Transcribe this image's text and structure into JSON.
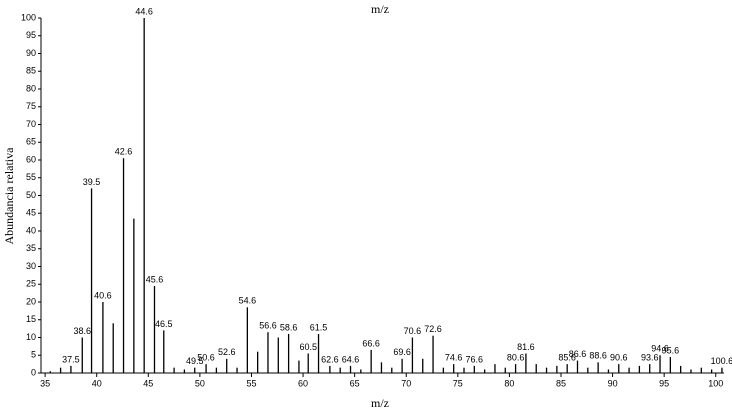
{
  "chart_data": {
    "type": "stem",
    "title": "m/z",
    "x_label": "m/z",
    "y_label": "Abundancia relativa",
    "color": "#000000",
    "x": [
      35.5,
      36.5,
      37.5,
      38.6,
      39.5,
      40.6,
      41.6,
      42.6,
      43.6,
      44.6,
      45.6,
      46.5,
      47.5,
      48.5,
      49.5,
      50.6,
      51.6,
      52.6,
      53.6,
      54.6,
      55.6,
      56.6,
      57.6,
      58.6,
      59.6,
      60.5,
      61.5,
      62.6,
      63.6,
      64.6,
      65.6,
      66.6,
      67.6,
      68.6,
      69.6,
      70.6,
      71.6,
      72.6,
      73.6,
      74.6,
      75.6,
      76.6,
      77.6,
      78.6,
      79.6,
      80.6,
      81.6,
      82.6,
      83.6,
      84.6,
      85.6,
      86.6,
      87.6,
      88.6,
      89.6,
      90.6,
      91.6,
      92.6,
      93.6,
      94.6,
      95.6,
      96.6,
      97.6,
      98.6,
      99.6,
      100.6
    ],
    "values": [
      0.5,
      1.5,
      2,
      10,
      52,
      20,
      14,
      60.5,
      43.5,
      100,
      24.5,
      12,
      1.5,
      1,
      1.5,
      2.5,
      1.5,
      4,
      1.5,
      18.5,
      6,
      11.5,
      10,
      11,
      3.5,
      5.5,
      11,
      2,
      1.5,
      2,
      1,
      6.5,
      3,
      1.5,
      4,
      10,
      4,
      10.5,
      1.5,
      2.5,
      1.5,
      2,
      1,
      2.5,
      1.5,
      2.5,
      5.5,
      2.5,
      1.5,
      2,
      2.5,
      3.5,
      1.5,
      3,
      1,
      2.5,
      1.5,
      2,
      2.5,
      5,
      4.5,
      2,
      1,
      1.5,
      1,
      1.5
    ],
    "peak_labels": [
      null,
      null,
      "37.5",
      "38.6",
      "39.5",
      "40.6",
      null,
      "42.6",
      null,
      "44.6",
      "45.6",
      "46.5",
      null,
      null,
      "49.5",
      "50.6",
      null,
      "52.6",
      null,
      "54.6",
      null,
      "56.6",
      null,
      "58.6",
      null,
      "60.5",
      "61.5",
      "62.6",
      null,
      "64.6",
      null,
      "66.6",
      null,
      null,
      "69.6",
      "70.6",
      null,
      "72.6",
      null,
      "74.6",
      null,
      "76.6",
      null,
      null,
      null,
      "80.6",
      "81.6",
      null,
      null,
      null,
      "85.6",
      "86.6",
      null,
      "88.6",
      null,
      "90.6",
      null,
      null,
      "93.6",
      "94.6",
      "95.6",
      null,
      null,
      null,
      null,
      "100.6"
    ],
    "xlim": [
      34.6,
      100.8
    ],
    "ylim": [
      0,
      100
    ],
    "xticks": [
      35,
      40,
      45,
      50,
      55,
      60,
      65,
      70,
      75,
      80,
      85,
      90,
      95,
      100
    ],
    "yticks": [
      0,
      5,
      10,
      15,
      20,
      25,
      30,
      35,
      40,
      45,
      50,
      55,
      60,
      65,
      70,
      75,
      80,
      85,
      90,
      95,
      100
    ]
  }
}
